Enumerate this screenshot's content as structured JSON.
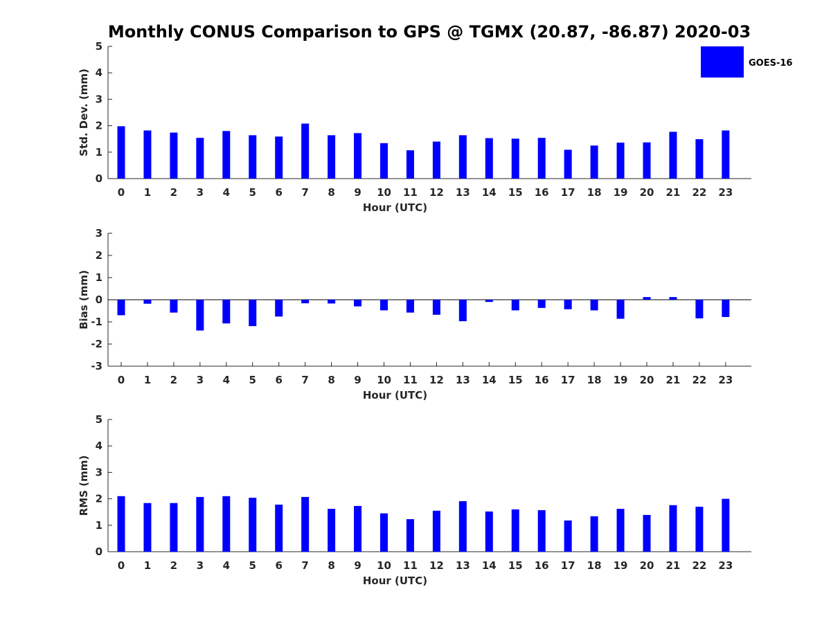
{
  "title": "Monthly CONUS Comparison to GPS @ TGMX (20.87, -86.87) 2020-03",
  "legend": {
    "label": "GOES-16",
    "color": "#0000ff"
  },
  "chart_data": [
    {
      "type": "bar",
      "id": "std",
      "xlabel": "Hour (UTC)",
      "ylabel": "Std. Dev. (mm)",
      "ylim": [
        0,
        5
      ],
      "yticks": [
        0,
        1,
        2,
        3,
        4,
        5
      ],
      "categories": [
        "0",
        "1",
        "2",
        "3",
        "4",
        "5",
        "6",
        "7",
        "8",
        "9",
        "10",
        "11",
        "12",
        "13",
        "14",
        "15",
        "16",
        "17",
        "18",
        "19",
        "20",
        "21",
        "22",
        "23"
      ],
      "series": [
        {
          "name": "GOES-16",
          "values": [
            1.98,
            1.82,
            1.74,
            1.54,
            1.8,
            1.64,
            1.59,
            2.08,
            1.64,
            1.72,
            1.34,
            1.07,
            1.4,
            1.64,
            1.53,
            1.51,
            1.54,
            1.09,
            1.25,
            1.36,
            1.37,
            1.77,
            1.49,
            1.82
          ]
        }
      ]
    },
    {
      "type": "bar",
      "id": "bias",
      "xlabel": "Hour (UTC)",
      "ylabel": "Bias (mm)",
      "ylim": [
        -3,
        3
      ],
      "yticks": [
        -3,
        -2,
        -1,
        0,
        1,
        2,
        3
      ],
      "categories": [
        "0",
        "1",
        "2",
        "3",
        "4",
        "5",
        "6",
        "7",
        "8",
        "9",
        "10",
        "11",
        "12",
        "13",
        "14",
        "15",
        "16",
        "17",
        "18",
        "19",
        "20",
        "21",
        "22",
        "23"
      ],
      "series": [
        {
          "name": "GOES-16",
          "values": [
            -0.7,
            -0.18,
            -0.58,
            -1.39,
            -1.07,
            -1.19,
            -0.76,
            -0.16,
            -0.17,
            -0.3,
            -0.48,
            -0.58,
            -0.68,
            -0.97,
            -0.1,
            -0.48,
            -0.37,
            -0.43,
            -0.48,
            -0.86,
            0.12,
            0.12,
            -0.84,
            -0.78
          ]
        }
      ]
    },
    {
      "type": "bar",
      "id": "rms",
      "xlabel": "Hour (UTC)",
      "ylabel": "RMS (mm)",
      "ylim": [
        0,
        5
      ],
      "yticks": [
        0,
        1,
        2,
        3,
        4,
        5
      ],
      "categories": [
        "0",
        "1",
        "2",
        "3",
        "4",
        "5",
        "6",
        "7",
        "8",
        "9",
        "10",
        "11",
        "12",
        "13",
        "14",
        "15",
        "16",
        "17",
        "18",
        "19",
        "20",
        "21",
        "22",
        "23"
      ],
      "series": [
        {
          "name": "GOES-16",
          "values": [
            2.1,
            1.84,
            1.84,
            2.07,
            2.1,
            2.04,
            1.78,
            2.07,
            1.62,
            1.73,
            1.45,
            1.23,
            1.55,
            1.91,
            1.52,
            1.6,
            1.57,
            1.18,
            1.34,
            1.62,
            1.39,
            1.76,
            1.7,
            2.0
          ]
        }
      ]
    }
  ]
}
